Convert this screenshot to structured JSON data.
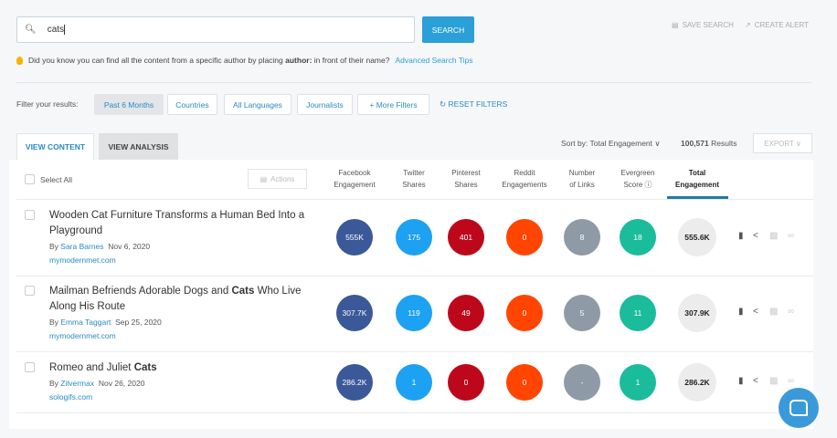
{
  "search": {
    "value": "cats",
    "button": "SEARCH",
    "save": "SAVE SEARCH",
    "alert": "CREATE ALERT"
  },
  "tip": {
    "pre": "Did you know you can find all the content from a specific author by placing ",
    "bold": "author:",
    "post": " in front of their name?",
    "link": "Advanced Search Tips"
  },
  "filters": {
    "label": "Filter your results:",
    "items": [
      "Past 6 Months",
      "Countries",
      "All Languages",
      "Journalists",
      "+ More Filters"
    ],
    "reset": "RESET FILTERS"
  },
  "tabs": [
    "VIEW CONTENT",
    "VIEW ANALYSIS"
  ],
  "sort": "Sort by: Total Engagement ∨",
  "results_count": "100,571",
  "results_label": " Results",
  "export": "EXPORT ∨",
  "table": {
    "select_all": "Select All",
    "actions": "Actions",
    "columns": [
      [
        "Facebook",
        "Engagement"
      ],
      [
        "Twitter",
        "Shares"
      ],
      [
        "Pinterest",
        "Shares"
      ],
      [
        "Reddit",
        "Engagements"
      ],
      [
        "Number",
        "of Links"
      ],
      [
        "Evergreen",
        "Score ⓘ"
      ],
      [
        "Total",
        "Engagement"
      ]
    ],
    "colors": [
      "#3b5998",
      "#1da1f2",
      "#bd081c",
      "#ff4500",
      "#8e9ba6",
      "#1abc9c",
      "#ececec"
    ],
    "rows": [
      {
        "title_pre": "Wooden Cat Furniture Transforms a Human Bed Into a Playground",
        "title_bold": "",
        "title_post": "",
        "by": "By ",
        "author": "Sara Barnes",
        "date": "Nov 6, 2020",
        "site": "mymodernmet.com",
        "values": [
          "555K",
          "175",
          "401",
          "0",
          "8",
          "18",
          "555.6K"
        ]
      },
      {
        "title_pre": "Mailman Befriends Adorable Dogs and ",
        "title_bold": "Cats",
        "title_post": " Who Live Along His Route",
        "by": "By ",
        "author": "Emma Taggart",
        "date": "Sep 25, 2020",
        "site": "mymodernmet.com",
        "values": [
          "307.7K",
          "119",
          "49",
          "0",
          "5",
          "11",
          "307.9K"
        ]
      },
      {
        "title_pre": "Romeo and Juliet ",
        "title_bold": "Cats",
        "title_post": "",
        "by": "By ",
        "author": "Zilvermax",
        "date": "Nov 26, 2020",
        "site": "sologifs.com",
        "values": [
          "286.2K",
          "1",
          "0",
          "0",
          "-",
          "1",
          "286.2K"
        ]
      }
    ]
  }
}
